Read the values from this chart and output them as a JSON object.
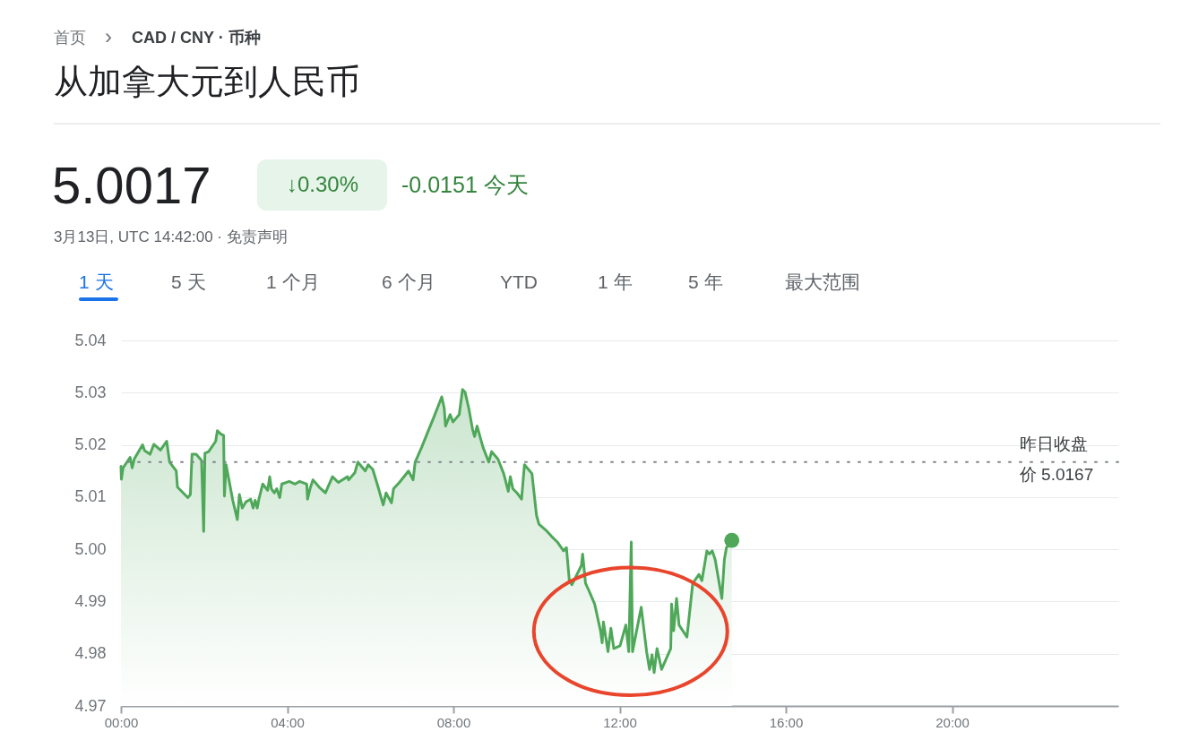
{
  "chart_data": {
    "type": "area",
    "title": "从加拿大元到人民币",
    "annotations": [
      "首页",
      "›",
      "CAD / CNY · 币种",
      "5.0017",
      "↓0.30%",
      "-0.0151 今天",
      "3月13日, UTC 14:42:00 · 免责声明",
      "1 天",
      "5 天",
      "1 个月",
      "6 个月",
      "YTD",
      "1 年",
      "5 年",
      "最大范围"
    ],
    "x": [
      0,
      0.01,
      0.05,
      0.22,
      0.27,
      0.32,
      0.52,
      0.57,
      0.7,
      0.79,
      0.95,
      1.1,
      1.17,
      1.33,
      1.36,
      1.61,
      1.67,
      1.71,
      1.81,
      1.94,
      1.99,
      2.02,
      2.11,
      2.28,
      2.32,
      2.4,
      2.47,
      2.49,
      2.53,
      2.69,
      2.8,
      2.85,
      2.92,
      3.01,
      3.12,
      3.18,
      3.23,
      3.28,
      3.32,
      3.41,
      3.53,
      3.58,
      3.62,
      3.69,
      3.75,
      3.82,
      3.87,
      4.05,
      4.19,
      4.3,
      4.47,
      4.49,
      4.55,
      4.62,
      4.77,
      4.92,
      5.09,
      5.23,
      5.45,
      5.48,
      5.63,
      5.7,
      5.88,
      5.95,
      6.06,
      6.2,
      6.31,
      6.38,
      6.51,
      6.56,
      6.7,
      6.92,
      7.03,
      7.08,
      7.24,
      7.38,
      7.53,
      7.72,
      7.78,
      7.81,
      7.92,
      7.99,
      8.14,
      8.22,
      8.28,
      8.37,
      8.46,
      8.51,
      8.57,
      8.71,
      8.85,
      8.92,
      9.07,
      9.21,
      9.32,
      9.37,
      9.43,
      9.53,
      9.64,
      9.71,
      9.89,
      10.0,
      10.06,
      10.22,
      10.36,
      10.5,
      10.65,
      10.72,
      10.79,
      10.85,
      11.08,
      11.11,
      11.18,
      11.25,
      11.4,
      11.54,
      11.58,
      11.61,
      11.72,
      11.79,
      11.86,
      12.01,
      12.15,
      12.22,
      12.28,
      12.31,
      12.52,
      12.65,
      12.72,
      12.78,
      12.83,
      12.9,
      13.01,
      13.23,
      13.25,
      13.3,
      13.37,
      13.43,
      13.62,
      13.76,
      13.91,
      13.98,
      14.1,
      14.16,
      14.23,
      14.3,
      14.46,
      14.52,
      14.57,
      14.7
    ],
    "series": [
      {
        "color": "#4fa85a",
        "values": [
          5.0159,
          5.0134,
          5.0156,
          5.0176,
          5.0156,
          5.0173,
          5.02,
          5.0189,
          5.0182,
          5.0201,
          5.019,
          5.0207,
          5.0167,
          5.015,
          5.0119,
          5.0099,
          5.0105,
          5.0182,
          5.0182,
          5.017,
          5.0034,
          5.0184,
          5.0187,
          5.0207,
          5.0227,
          5.0221,
          5.0218,
          5.0102,
          5.0162,
          5.0094,
          5.0057,
          5.0105,
          5.0079,
          5.0091,
          5.0096,
          5.0079,
          5.0094,
          5.0079,
          5.0096,
          5.0125,
          5.0113,
          5.0139,
          5.0116,
          5.0108,
          5.0116,
          5.0099,
          5.0125,
          5.013,
          5.0125,
          5.013,
          5.0125,
          5.0096,
          5.0116,
          5.0133,
          5.0119,
          5.0108,
          5.0139,
          5.0128,
          5.0139,
          5.0133,
          5.0147,
          5.0167,
          5.015,
          5.0162,
          5.0153,
          5.0116,
          5.0085,
          5.0108,
          5.0089,
          5.0116,
          5.0128,
          5.015,
          5.0133,
          5.0167,
          5.0196,
          5.0224,
          5.0253,
          5.0292,
          5.027,
          5.0236,
          5.0258,
          5.0244,
          5.0258,
          5.0306,
          5.0301,
          5.027,
          5.023,
          5.0216,
          5.0236,
          5.0196,
          5.0167,
          5.0187,
          5.0173,
          5.0145,
          5.0111,
          5.0139,
          5.0116,
          5.0108,
          5.0096,
          5.0162,
          5.0145,
          5.0065,
          5.0048,
          5.0037,
          5.0025,
          5.0014,
          4.9997,
          5.0003,
          4.994,
          4.9932,
          4.9969,
          4.9991,
          4.9935,
          4.9923,
          4.9895,
          4.9844,
          4.9821,
          4.9861,
          4.9804,
          4.9849,
          4.981,
          4.9815,
          4.9855,
          4.9804,
          5.0014,
          4.9804,
          4.9889,
          4.9804,
          4.977,
          4.9798,
          4.9764,
          4.981,
          4.977,
          4.981,
          4.9895,
          4.9844,
          4.9906,
          4.9855,
          4.9832,
          4.9935,
          4.9952,
          4.994,
          4.9997,
          4.9991,
          4.9997,
          4.998,
          4.9906,
          4.998,
          5.0003,
          5.0017
        ]
      },
      {
        "type": "scatter",
        "color": "#4fa85a",
        "x": [
          14.7
        ],
        "values": [
          5.0017
        ]
      }
    ],
    "xlim": [
      0,
      24
    ],
    "xticks": [
      {
        "value": 0,
        "label": "00:00"
      },
      {
        "value": 4,
        "label": "04:00"
      },
      {
        "value": 8,
        "label": "08:00"
      },
      {
        "value": 12,
        "label": "12:00"
      },
      {
        "value": 16,
        "label": "16:00"
      },
      {
        "value": 20,
        "label": "20:00"
      }
    ],
    "ylim": [
      4.97,
      5.04
    ],
    "yticks": [
      4.97,
      4.98,
      4.99,
      {
        "value": 5,
        "label": "5.00"
      },
      5.01,
      5.02,
      5.03,
      5.04
    ],
    "grid": "y",
    "ref_lines": [
      {
        "axis": "y",
        "value": 5.0167,
        "label": "昨日收盘价 5.0167",
        "line_style": "dotted",
        "color": "#80868b"
      }
    ]
  }
}
